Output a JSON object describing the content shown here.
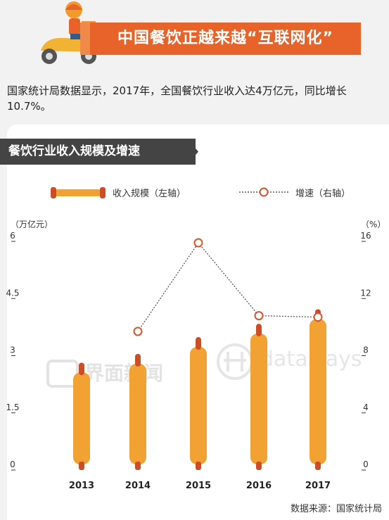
{
  "banner": {
    "title": "中国餐饮正越来越“互联网化”"
  },
  "intro": {
    "text": "国家统计局数据显示，2017年，全国餐饮行业收入达4万亿元，同比增长10.7%。"
  },
  "section": {
    "title": "餐饮行业收入规模及增速"
  },
  "legend": {
    "bar_label": "收入规模（左轴）",
    "line_label": "增速（右轴）"
  },
  "watermarks": {
    "left": "界面新闻",
    "right": "data says"
  },
  "source": {
    "text": "数据来源：国家统计局"
  },
  "colors": {
    "bar": "#f2a233",
    "bar_cap": "#cc4d26",
    "line": "#555555",
    "marker": "#d9542b",
    "banner": "#e8632a"
  },
  "icons": {
    "banner": "delivery-scooter-icon",
    "section": "chevron-right-icon",
    "watermark": "logo-icon"
  },
  "chart_data": {
    "type": "bar",
    "categories": [
      "2013",
      "2014",
      "2015",
      "2016",
      "2017"
    ],
    "left_axis": {
      "label": "（万亿元）",
      "ticks": [
        "6",
        "4.5",
        "3",
        "1.5",
        "0"
      ],
      "range": [
        0,
        6
      ]
    },
    "right_axis": {
      "label": "（%）",
      "ticks": [
        "16",
        "12",
        "8",
        "4",
        "0"
      ],
      "range": [
        0,
        16
      ]
    },
    "series": [
      {
        "name": "收入规模（左轴）",
        "type": "bar",
        "axis": "left",
        "values": [
          2.56,
          2.79,
          3.23,
          3.58,
          3.96
        ]
      },
      {
        "name": "增速（右轴）",
        "type": "line",
        "axis": "right",
        "values": [
          null,
          9.7,
          15.9,
          10.8,
          10.7
        ]
      }
    ]
  }
}
